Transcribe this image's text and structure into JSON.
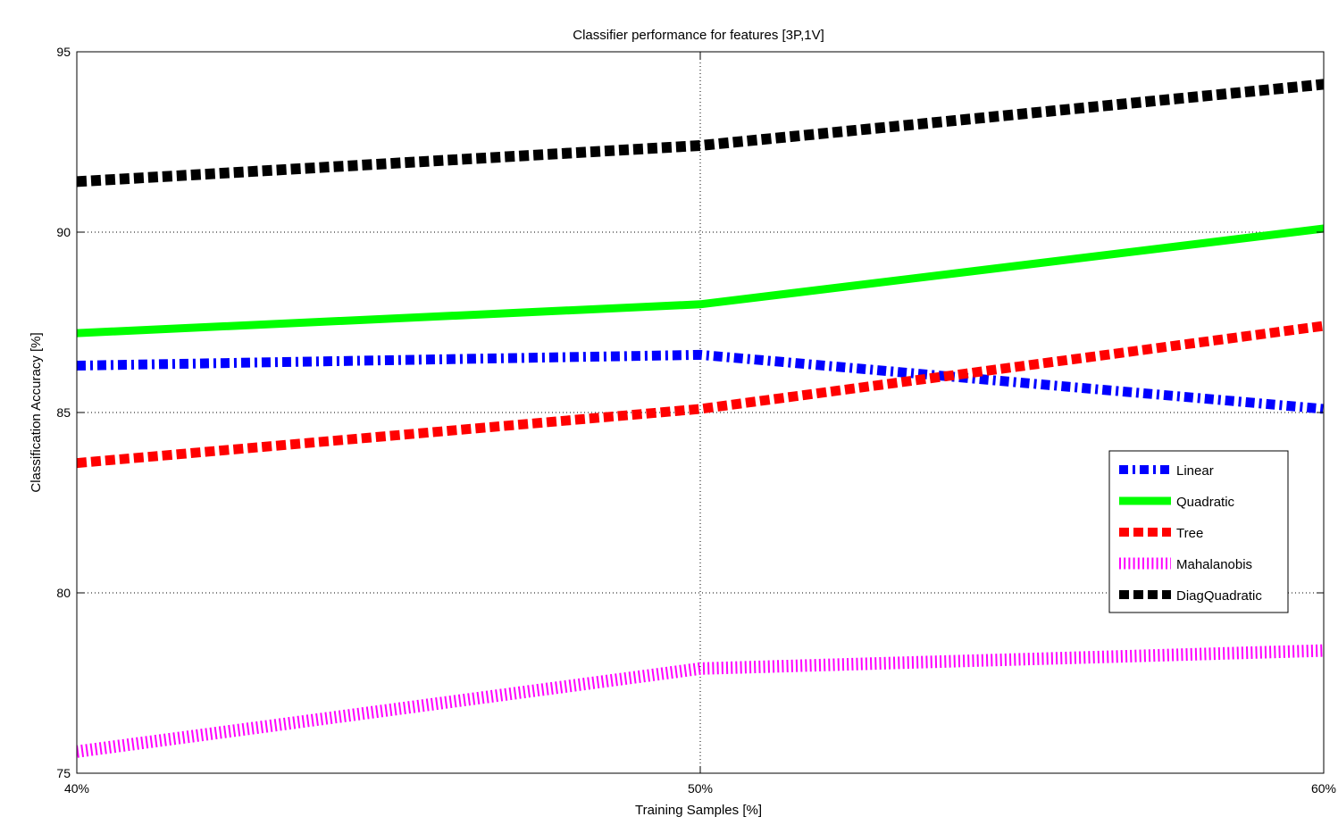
{
  "chart_data": {
    "type": "line",
    "title": "Classifier performance for features [3P,1V]",
    "xlabel": "Training Samples [%]",
    "ylabel": "Classification Accuracy [%]",
    "x": [
      40,
      50,
      60
    ],
    "xtick_labels": [
      "40%",
      "50%",
      "60%"
    ],
    "xlim": [
      40,
      60
    ],
    "ylim": [
      75,
      95
    ],
    "yticks": [
      75,
      80,
      85,
      90,
      95
    ],
    "ytick_labels": [
      "75",
      "80",
      "85",
      "90",
      "95"
    ],
    "grid": "dotted",
    "legend_position": "right",
    "series": [
      {
        "name": "Linear",
        "values": [
          86.3,
          86.6,
          85.1
        ],
        "color": "#0000ff",
        "style": "dashdot"
      },
      {
        "name": "Quadratic",
        "values": [
          87.2,
          88.0,
          90.1
        ],
        "color": "#00ff00",
        "style": "solid"
      },
      {
        "name": "Tree",
        "values": [
          83.6,
          85.1,
          87.4
        ],
        "color": "#ff0000",
        "style": "dashed"
      },
      {
        "name": "Mahalanobis",
        "values": [
          75.6,
          77.9,
          78.4
        ],
        "color": "#ff00ff",
        "style": "dotted"
      },
      {
        "name": "DiagQuadratic",
        "values": [
          91.4,
          92.4,
          94.1
        ],
        "color": "#000000",
        "style": "dashed-dark"
      }
    ]
  }
}
